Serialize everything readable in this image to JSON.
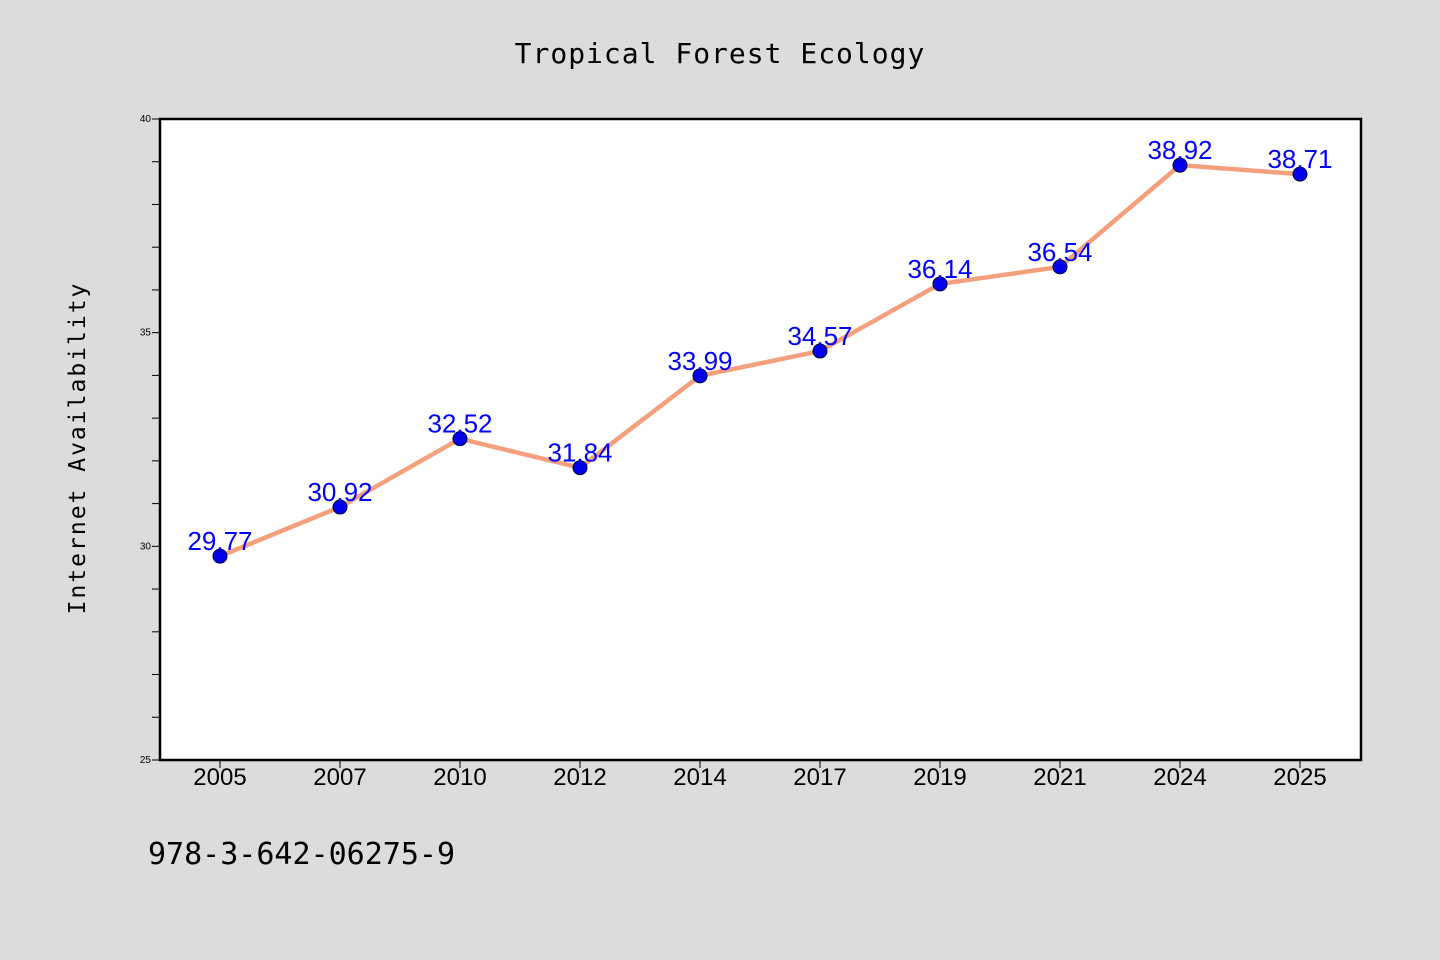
{
  "chart_data": {
    "type": "line",
    "title": "Tropical Forest Ecology",
    "ylabel": "Internet Availability",
    "xlabel": "",
    "categories": [
      "2005",
      "2007",
      "2010",
      "2012",
      "2014",
      "2017",
      "2019",
      "2021",
      "2024",
      "2025"
    ],
    "series": [
      {
        "values": [
          29.77,
          30.92,
          32.52,
          31.84,
          33.99,
          34.57,
          36.14,
          36.54,
          38.92,
          38.71
        ]
      }
    ],
    "data_labels": [
      "29.77",
      "30.92",
      "32.52",
      "31.84",
      "33.99",
      "34.57",
      "36.14",
      "36.54",
      "38.92",
      "38.71"
    ],
    "ylim": [
      25,
      40
    ],
    "yticks": [
      25,
      30,
      35,
      40
    ],
    "grid": false,
    "line_color": "#f4a07c",
    "marker_color": "#0000ee",
    "label_color": "#0000ff"
  },
  "footer": "978-3-642-06275-9",
  "background_color": "#dcdcdc"
}
